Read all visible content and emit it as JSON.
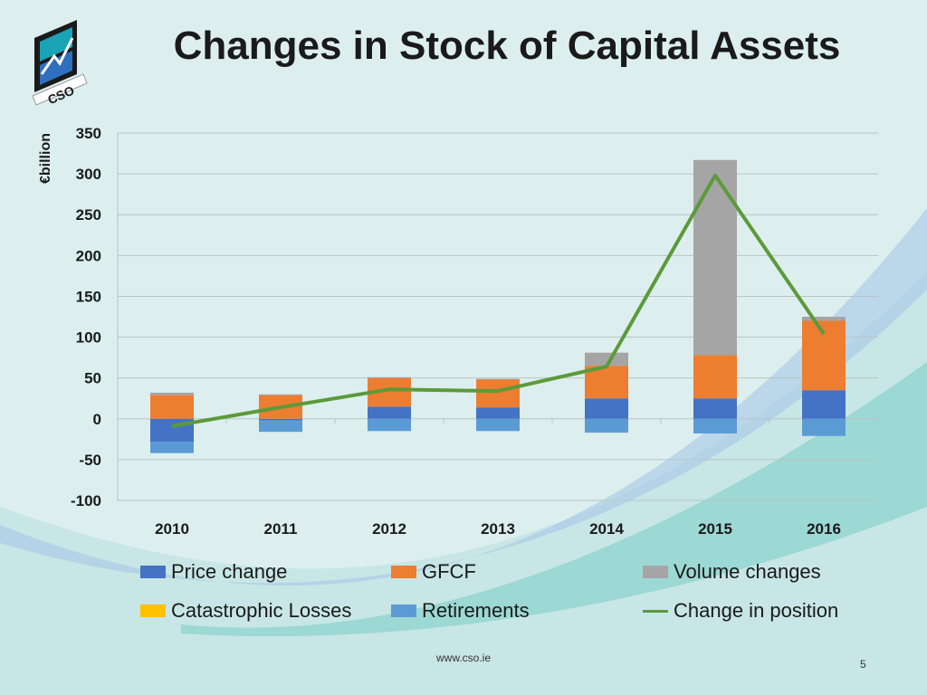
{
  "slide": {
    "title": "Changes in Stock of Capital Assets",
    "logo_text": "CSO",
    "footer_url": "www.cso.ie",
    "page_number": "5"
  },
  "chart_data": {
    "type": "bar",
    "stacked": true,
    "title": "Changes in Stock of Capital Assets",
    "ylabel": "€billion",
    "xlabel": "",
    "ylim": [
      -100,
      350
    ],
    "yticks": [
      350,
      300,
      250,
      200,
      150,
      100,
      50,
      0,
      -50,
      -100
    ],
    "categories": [
      "2010",
      "2011",
      "2012",
      "2013",
      "2014",
      "2015",
      "2016"
    ],
    "grid": true,
    "legend_position": "bottom",
    "series": [
      {
        "name": "Price change",
        "type": "bar",
        "color": "#4472c4",
        "values": [
          -28,
          -2,
          15,
          14,
          25,
          25,
          35
        ]
      },
      {
        "name": "GFCF",
        "type": "bar",
        "color": "#ed7d31",
        "values": [
          29,
          29,
          35,
          34,
          40,
          53,
          85
        ]
      },
      {
        "name": "Volume changes",
        "type": "bar",
        "color": "#a5a5a5",
        "values": [
          3,
          1,
          1,
          1,
          16,
          239,
          5
        ]
      },
      {
        "name": "Catastrophic Losses",
        "type": "bar",
        "color": "#ffc000",
        "values": [
          0,
          0,
          0,
          0,
          0,
          0,
          0
        ]
      },
      {
        "name": "Retirements",
        "type": "bar",
        "color": "#5b9bd5",
        "values": [
          -14,
          -14,
          -15,
          -15,
          -17,
          -18,
          -21
        ]
      },
      {
        "name": "Change in position",
        "type": "line",
        "color": "#5c9a3a",
        "values": [
          -9,
          14,
          36,
          34,
          64,
          298,
          104
        ]
      }
    ]
  }
}
